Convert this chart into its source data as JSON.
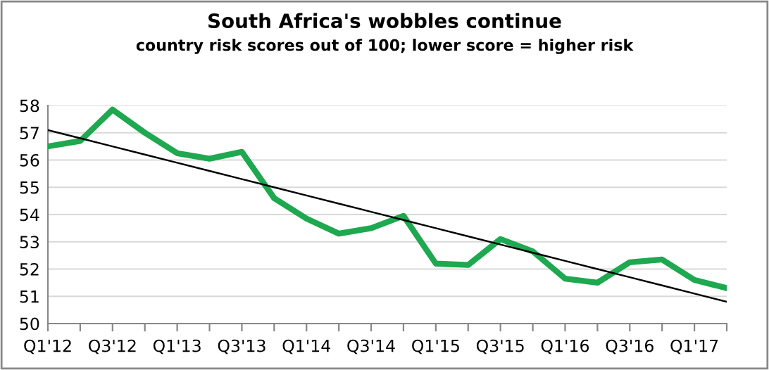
{
  "chart_data": {
    "type": "line",
    "title": "South Africa's wobbles continue",
    "subtitle": "country risk scores out of 100; lower score = higher risk",
    "categories": [
      "Q1'12",
      null,
      "Q3'12",
      null,
      "Q1'13",
      null,
      "Q3'13",
      null,
      "Q1'14",
      null,
      "Q3'14",
      null,
      "Q1'15",
      null,
      "Q3'15",
      null,
      "Q1'16",
      null,
      "Q3'16",
      null,
      "Q1'17",
      null
    ],
    "series": [
      {
        "color": "#1ea84f",
        "values": [
          56.5,
          56.7,
          57.85,
          57.0,
          56.25,
          56.05,
          56.3,
          54.6,
          53.85,
          53.3,
          53.5,
          53.95,
          52.2,
          52.15,
          53.1,
          52.65,
          51.65,
          51.5,
          52.25,
          52.35,
          51.6,
          51.3
        ]
      },
      {
        "color": "#000000",
        "values": [
          57.1,
          56.8,
          56.5,
          56.2,
          55.9,
          55.6,
          55.3,
          55.0,
          54.7,
          54.4,
          54.1,
          53.8,
          53.5,
          53.2,
          52.9,
          52.6,
          52.3,
          52.0,
          51.7,
          51.4,
          51.1,
          50.8
        ]
      }
    ],
    "ylim": [
      50,
      58
    ],
    "yticks": [
      50,
      51,
      52,
      53,
      54,
      55,
      56,
      57,
      58
    ],
    "grid": "y",
    "legend": false,
    "marker": "none",
    "line_style": "solid"
  }
}
